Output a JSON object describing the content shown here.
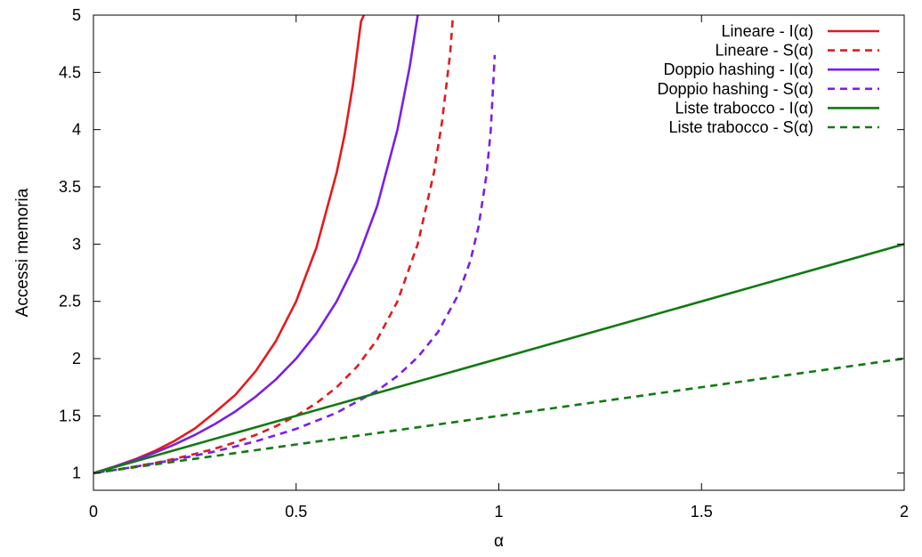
{
  "chart_data": {
    "type": "line",
    "title": "",
    "xlabel": "α",
    "ylabel": "Accessi memoria",
    "xlim": [
      0,
      2
    ],
    "ylim": [
      0.85,
      5
    ],
    "x_ticks": [
      0,
      0.5,
      1,
      1.5,
      2
    ],
    "x_tick_labels": [
      "0",
      "0.5",
      "1",
      "1.5",
      "2"
    ],
    "y_ticks": [
      1,
      1.5,
      2,
      2.5,
      3,
      3.5,
      4,
      4.5,
      5
    ],
    "y_tick_labels": [
      "1",
      "1.5",
      "2",
      "2.5",
      "3",
      "3.5",
      "4",
      "4.5",
      "5"
    ],
    "grid": false,
    "legend_position": "top-right",
    "series": [
      {
        "name": "Lineare - I(α)",
        "color": "#e41a1c",
        "dash": "solid",
        "x": [
          0,
          0.05,
          0.1,
          0.15,
          0.2,
          0.25,
          0.3,
          0.35,
          0.4,
          0.45,
          0.5,
          0.55,
          0.6,
          0.62,
          0.64,
          0.66,
          0.667
        ],
        "y": [
          1.0,
          1.055,
          1.117,
          1.191,
          1.281,
          1.389,
          1.531,
          1.683,
          1.889,
          2.153,
          2.5,
          2.969,
          3.625,
          3.962,
          4.389,
          4.944,
          5.0
        ]
      },
      {
        "name": "Lineare - S(α)",
        "color": "#e41a1c",
        "dash": "dashed",
        "x": [
          0,
          0.05,
          0.1,
          0.15,
          0.2,
          0.25,
          0.3,
          0.35,
          0.4,
          0.45,
          0.5,
          0.55,
          0.6,
          0.65,
          0.7,
          0.75,
          0.8,
          0.84,
          0.86,
          0.88,
          0.887
        ],
        "y": [
          1.0,
          1.026,
          1.056,
          1.088,
          1.125,
          1.167,
          1.214,
          1.269,
          1.333,
          1.409,
          1.5,
          1.611,
          1.75,
          1.929,
          2.167,
          2.5,
          3.0,
          3.625,
          4.071,
          4.667,
          5.0
        ]
      },
      {
        "name": "Doppio hashing - I(α)",
        "color": "#7a1fe6",
        "dash": "solid",
        "x": [
          0,
          0.05,
          0.1,
          0.15,
          0.2,
          0.25,
          0.3,
          0.35,
          0.4,
          0.45,
          0.5,
          0.55,
          0.6,
          0.65,
          0.7,
          0.75,
          0.78,
          0.8
        ],
        "y": [
          1.0,
          1.053,
          1.111,
          1.176,
          1.25,
          1.333,
          1.429,
          1.538,
          1.667,
          1.818,
          2.0,
          2.222,
          2.5,
          2.857,
          3.333,
          4.0,
          4.545,
          5.0
        ]
      },
      {
        "name": "Doppio hashing - S(α)",
        "color": "#7a1fe6",
        "dash": "dashed",
        "x": [
          0.01,
          0.05,
          0.1,
          0.2,
          0.3,
          0.4,
          0.5,
          0.6,
          0.7,
          0.75,
          0.8,
          0.85,
          0.9,
          0.93,
          0.95,
          0.97,
          0.98,
          0.99
        ],
        "y": [
          1.005,
          1.026,
          1.054,
          1.116,
          1.189,
          1.277,
          1.386,
          1.527,
          1.72,
          1.848,
          2.012,
          2.232,
          2.558,
          2.856,
          3.153,
          3.615,
          3.992,
          4.652
        ]
      },
      {
        "name": "Liste trabocco - I(α)",
        "color": "#107a10",
        "dash": "solid",
        "x": [
          0,
          2
        ],
        "y": [
          1,
          3
        ]
      },
      {
        "name": "Liste trabocco - S(α)",
        "color": "#107a10",
        "dash": "dashed",
        "x": [
          0,
          2
        ],
        "y": [
          1,
          2
        ]
      }
    ]
  }
}
